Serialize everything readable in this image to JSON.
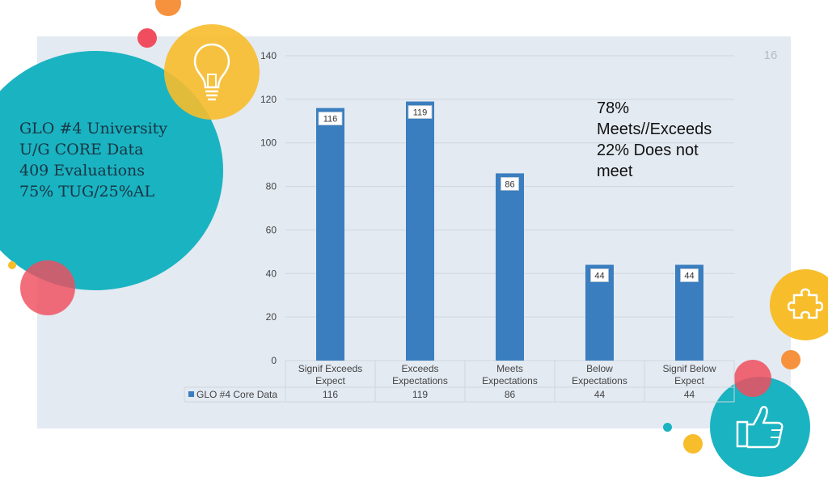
{
  "slide": {
    "number": "16",
    "info_lines": [
      "GLO #4 University",
      "U/G CORE Data",
      "",
      "409 Evaluations",
      "75% TUG/25%AL"
    ],
    "annotation_lines": [
      "78%",
      "Meets//Exceeds",
      "22% Does not",
      "meet"
    ],
    "icons": [
      "lightbulb-icon",
      "puzzle-piece-icon",
      "thumbs-up-icon"
    ],
    "colors": {
      "panel": "#e3eaf2",
      "bar": "#3a7ebf",
      "teal": "#1ab3c1",
      "yellow": "#f7bd2b",
      "pink": "#f04e5e",
      "orange": "#f6923d"
    }
  },
  "chart_data": {
    "type": "bar",
    "categories": [
      [
        "Signif Exceeds",
        "Expect"
      ],
      [
        "Exceeds",
        "Expectations"
      ],
      [
        "Meets",
        "Expectations"
      ],
      [
        "Below",
        "Expectations"
      ],
      [
        "Signif Below",
        "Expect"
      ]
    ],
    "series": [
      {
        "name": "GLO #4 Core Data",
        "values": [
          116,
          119,
          86,
          44,
          44
        ]
      }
    ],
    "data_labels": [
      "116",
      "119",
      "86",
      "44",
      "44"
    ],
    "table_values": [
      "116",
      "119",
      "86",
      "44",
      "44"
    ],
    "y_ticks": [
      "0",
      "20",
      "40",
      "60",
      "80",
      "100",
      "120",
      "140"
    ],
    "ylim": [
      0,
      140
    ],
    "grid": true,
    "legend": "data-table"
  }
}
